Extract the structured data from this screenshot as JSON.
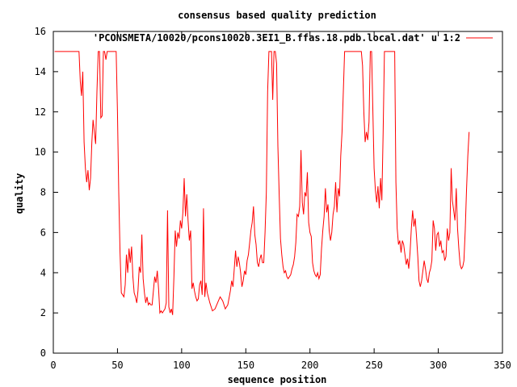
{
  "chart_data": {
    "type": "line",
    "title": "consensus based quality prediction",
    "xlabel": "sequence position",
    "ylabel": "quality",
    "xlim": [
      0,
      350
    ],
    "ylim": [
      0,
      16
    ],
    "x_ticks": [
      0,
      50,
      100,
      150,
      200,
      250,
      300,
      350
    ],
    "y_ticks": [
      0,
      2,
      4,
      6,
      8,
      10,
      12,
      14,
      16
    ],
    "grid": false,
    "legend_position": "top-right",
    "series": [
      {
        "name": "'PCONSMETA/10020/pcons10020.3EI1_B.ffas.18.pdb.local.dat' u 1:2",
        "color": "#ff0000",
        "points": [
          [
            1,
            15
          ],
          [
            5,
            15
          ],
          [
            10,
            15
          ],
          [
            15,
            15
          ],
          [
            20,
            15
          ],
          [
            21,
            13.5
          ],
          [
            22,
            12.8
          ],
          [
            23,
            14.0
          ],
          [
            24,
            10.5
          ],
          [
            25,
            9.2
          ],
          [
            26,
            8.5
          ],
          [
            27,
            9.1
          ],
          [
            28,
            8.1
          ],
          [
            29,
            8.7
          ],
          [
            30,
            10.5
          ],
          [
            31,
            11.6
          ],
          [
            32,
            11.0
          ],
          [
            33,
            10.4
          ],
          [
            34,
            13.0
          ],
          [
            35,
            15
          ],
          [
            36,
            15
          ],
          [
            37,
            11.7
          ],
          [
            38,
            11.8
          ],
          [
            39,
            15
          ],
          [
            40,
            15
          ],
          [
            41,
            14.6
          ],
          [
            42,
            15
          ],
          [
            45,
            15
          ],
          [
            47,
            15
          ],
          [
            48,
            15
          ],
          [
            49,
            15
          ],
          [
            50,
            12.0
          ],
          [
            51,
            8.0
          ],
          [
            52,
            5.0
          ],
          [
            53,
            3.0
          ],
          [
            54,
            2.9
          ],
          [
            55,
            2.8
          ],
          [
            56,
            3.4
          ],
          [
            57,
            4.9
          ],
          [
            58,
            4.0
          ],
          [
            59,
            5.2
          ],
          [
            60,
            4.5
          ],
          [
            61,
            5.3
          ],
          [
            62,
            3.8
          ],
          [
            63,
            3.0
          ],
          [
            64,
            2.8
          ],
          [
            65,
            2.5
          ],
          [
            66,
            3.1
          ],
          [
            67,
            4.3
          ],
          [
            68,
            4.0
          ],
          [
            69,
            5.9
          ],
          [
            70,
            3.7
          ],
          [
            71,
            3.0
          ],
          [
            72,
            2.5
          ],
          [
            73,
            2.8
          ],
          [
            74,
            2.4
          ],
          [
            75,
            2.5
          ],
          [
            76,
            2.4
          ],
          [
            77,
            2.4
          ],
          [
            78,
            3.1
          ],
          [
            79,
            3.8
          ],
          [
            80,
            3.5
          ],
          [
            81,
            4.1
          ],
          [
            82,
            3.2
          ],
          [
            83,
            2.0
          ],
          [
            84,
            2.1
          ],
          [
            85,
            2.0
          ],
          [
            86,
            2.1
          ],
          [
            87,
            2.2
          ],
          [
            88,
            2.5
          ],
          [
            89,
            7.1
          ],
          [
            90,
            2.3
          ],
          [
            91,
            2.0
          ],
          [
            92,
            2.2
          ],
          [
            93,
            1.9
          ],
          [
            94,
            3.8
          ],
          [
            95,
            6.1
          ],
          [
            96,
            5.3
          ],
          [
            97,
            6.0
          ],
          [
            98,
            5.7
          ],
          [
            99,
            6.6
          ],
          [
            100,
            6.2
          ],
          [
            101,
            7.0
          ],
          [
            102,
            8.7
          ],
          [
            103,
            6.8
          ],
          [
            104,
            7.9
          ],
          [
            105,
            6.6
          ],
          [
            106,
            5.6
          ],
          [
            107,
            6.1
          ],
          [
            108,
            3.2
          ],
          [
            109,
            3.5
          ],
          [
            110,
            3.1
          ],
          [
            111,
            2.8
          ],
          [
            112,
            2.6
          ],
          [
            113,
            2.7
          ],
          [
            114,
            3.4
          ],
          [
            115,
            3.6
          ],
          [
            116,
            2.9
          ],
          [
            117,
            7.2
          ],
          [
            118,
            2.8
          ],
          [
            119,
            3.5
          ],
          [
            120,
            3.0
          ],
          [
            122,
            2.5
          ],
          [
            124,
            2.1
          ],
          [
            126,
            2.2
          ],
          [
            128,
            2.5
          ],
          [
            130,
            2.8
          ],
          [
            132,
            2.6
          ],
          [
            134,
            2.2
          ],
          [
            136,
            2.4
          ],
          [
            138,
            3.1
          ],
          [
            139,
            3.6
          ],
          [
            140,
            3.3
          ],
          [
            141,
            4.2
          ],
          [
            142,
            5.1
          ],
          [
            143,
            4.3
          ],
          [
            144,
            4.8
          ],
          [
            145,
            4.5
          ],
          [
            146,
            4.0
          ],
          [
            147,
            3.3
          ],
          [
            148,
            3.6
          ],
          [
            149,
            4.1
          ],
          [
            150,
            3.9
          ],
          [
            151,
            4.6
          ],
          [
            152,
            4.9
          ],
          [
            153,
            5.5
          ],
          [
            154,
            6.1
          ],
          [
            155,
            6.5
          ],
          [
            156,
            7.3
          ],
          [
            157,
            5.9
          ],
          [
            158,
            5.4
          ],
          [
            159,
            4.5
          ],
          [
            160,
            4.3
          ],
          [
            161,
            4.7
          ],
          [
            162,
            4.9
          ],
          [
            163,
            4.5
          ],
          [
            164,
            4.5
          ],
          [
            165,
            6.0
          ],
          [
            166,
            8.0
          ],
          [
            167,
            13.0
          ],
          [
            168,
            15
          ],
          [
            169,
            15
          ],
          [
            170,
            15
          ],
          [
            171,
            12.6
          ],
          [
            172,
            15
          ],
          [
            173,
            15
          ],
          [
            174,
            14.4
          ],
          [
            175,
            10.3
          ],
          [
            176,
            7.9
          ],
          [
            177,
            5.7
          ],
          [
            178,
            4.9
          ],
          [
            179,
            4.3
          ],
          [
            180,
            4.0
          ],
          [
            181,
            4.1
          ],
          [
            182,
            3.8
          ],
          [
            183,
            3.7
          ],
          [
            184,
            3.8
          ],
          [
            185,
            3.9
          ],
          [
            186,
            4.2
          ],
          [
            187,
            4.4
          ],
          [
            188,
            4.8
          ],
          [
            189,
            5.5
          ],
          [
            190,
            6.9
          ],
          [
            191,
            6.8
          ],
          [
            192,
            7.3
          ],
          [
            193,
            10.1
          ],
          [
            194,
            7.5
          ],
          [
            195,
            6.9
          ],
          [
            196,
            8.0
          ],
          [
            197,
            7.8
          ],
          [
            198,
            9.0
          ],
          [
            199,
            6.5
          ],
          [
            200,
            6.0
          ],
          [
            201,
            5.8
          ],
          [
            202,
            4.5
          ],
          [
            203,
            4.1
          ],
          [
            204,
            3.9
          ],
          [
            205,
            3.8
          ],
          [
            206,
            4.0
          ],
          [
            207,
            3.7
          ],
          [
            208,
            3.9
          ],
          [
            209,
            5.2
          ],
          [
            210,
            6.1
          ],
          [
            211,
            6.8
          ],
          [
            212,
            8.2
          ],
          [
            213,
            7.0
          ],
          [
            214,
            7.4
          ],
          [
            215,
            6.1
          ],
          [
            216,
            5.6
          ],
          [
            217,
            6.0
          ],
          [
            218,
            6.9
          ],
          [
            219,
            7.3
          ],
          [
            220,
            8.5
          ],
          [
            221,
            7.0
          ],
          [
            222,
            8.2
          ],
          [
            223,
            7.8
          ],
          [
            224,
            9.8
          ],
          [
            225,
            11.0
          ],
          [
            226,
            13.0
          ],
          [
            227,
            15
          ],
          [
            229,
            15
          ],
          [
            232,
            15
          ],
          [
            235,
            15
          ],
          [
            238,
            15
          ],
          [
            240,
            15
          ],
          [
            241,
            14.3
          ],
          [
            242,
            12.0
          ],
          [
            243,
            10.5
          ],
          [
            244,
            11.0
          ],
          [
            245,
            10.6
          ],
          [
            246,
            11.5
          ],
          [
            247,
            15
          ],
          [
            248,
            15
          ],
          [
            249,
            12.0
          ],
          [
            250,
            9.2
          ],
          [
            251,
            8.1
          ],
          [
            252,
            7.5
          ],
          [
            253,
            8.3
          ],
          [
            254,
            7.2
          ],
          [
            255,
            8.7
          ],
          [
            256,
            7.6
          ],
          [
            257,
            11.0
          ],
          [
            258,
            15
          ],
          [
            260,
            15
          ],
          [
            263,
            15
          ],
          [
            265,
            15
          ],
          [
            266,
            15
          ],
          [
            267,
            8.5
          ],
          [
            268,
            6.2
          ],
          [
            269,
            5.4
          ],
          [
            270,
            5.6
          ],
          [
            271,
            5.0
          ],
          [
            272,
            5.6
          ],
          [
            273,
            5.4
          ],
          [
            274,
            4.9
          ],
          [
            275,
            4.4
          ],
          [
            276,
            4.7
          ],
          [
            277,
            4.2
          ],
          [
            278,
            5.0
          ],
          [
            279,
            6.2
          ],
          [
            280,
            7.1
          ],
          [
            281,
            6.3
          ],
          [
            282,
            6.7
          ],
          [
            283,
            5.8
          ],
          [
            284,
            4.8
          ],
          [
            285,
            3.6
          ],
          [
            286,
            3.3
          ],
          [
            287,
            3.6
          ],
          [
            288,
            4.1
          ],
          [
            289,
            4.6
          ],
          [
            290,
            4.2
          ],
          [
            291,
            3.7
          ],
          [
            292,
            3.5
          ],
          [
            293,
            4.0
          ],
          [
            294,
            4.2
          ],
          [
            295,
            4.6
          ],
          [
            296,
            6.6
          ],
          [
            297,
            6.2
          ],
          [
            298,
            5.1
          ],
          [
            299,
            5.9
          ],
          [
            300,
            6.0
          ],
          [
            301,
            5.3
          ],
          [
            302,
            5.6
          ],
          [
            303,
            5.0
          ],
          [
            304,
            5.1
          ],
          [
            305,
            4.6
          ],
          [
            306,
            4.8
          ],
          [
            307,
            6.2
          ],
          [
            308,
            5.6
          ],
          [
            309,
            6.0
          ],
          [
            310,
            9.2
          ],
          [
            311,
            7.6
          ],
          [
            312,
            7.1
          ],
          [
            313,
            6.6
          ],
          [
            314,
            8.2
          ],
          [
            315,
            6.2
          ],
          [
            316,
            5.2
          ],
          [
            317,
            4.4
          ],
          [
            318,
            4.2
          ],
          [
            319,
            4.3
          ],
          [
            320,
            4.6
          ],
          [
            321,
            6.1
          ],
          [
            322,
            8.1
          ],
          [
            323,
            9.8
          ],
          [
            324,
            11.0
          ]
        ]
      }
    ]
  }
}
